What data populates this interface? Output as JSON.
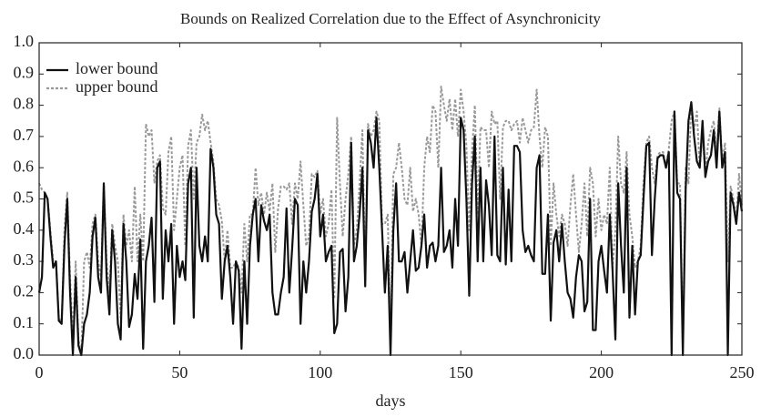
{
  "chart_data": {
    "type": "line",
    "title": "Bounds on Realized Correlation due to the Effect of Asynchronicity",
    "x_label": "days",
    "x": [
      0,
      1,
      2,
      3,
      4,
      5,
      6,
      7,
      8,
      9,
      10,
      11,
      12,
      13,
      14,
      15,
      16,
      17,
      18,
      19,
      20,
      21,
      22,
      23,
      24,
      25,
      26,
      27,
      28,
      29,
      30,
      31,
      32,
      33,
      34,
      35,
      36,
      37,
      38,
      39,
      40,
      41,
      42,
      43,
      44,
      45,
      46,
      47,
      48,
      49,
      50,
      51,
      52,
      53,
      54,
      55,
      56,
      57,
      58,
      59,
      60,
      61,
      62,
      63,
      64,
      65,
      66,
      67,
      68,
      69,
      70,
      71,
      72,
      73,
      74,
      75,
      76,
      77,
      78,
      79,
      80,
      81,
      82,
      83,
      84,
      85,
      86,
      87,
      88,
      89,
      90,
      91,
      92,
      93,
      94,
      95,
      96,
      97,
      98,
      99,
      100,
      101,
      102,
      103,
      104,
      105,
      106,
      107,
      108,
      109,
      110,
      111,
      112,
      113,
      114,
      115,
      116,
      117,
      118,
      119,
      120,
      121,
      122,
      123,
      124,
      125,
      126,
      127,
      128,
      129,
      130,
      131,
      132,
      133,
      134,
      135,
      136,
      137,
      138,
      139,
      140,
      141,
      142,
      143,
      144,
      145,
      146,
      147,
      148,
      149,
      150,
      151,
      152,
      153,
      154,
      155,
      156,
      157,
      158,
      159,
      160,
      161,
      162,
      163,
      164,
      165,
      166,
      167,
      168,
      169,
      170,
      171,
      172,
      173,
      174,
      175,
      176,
      177,
      178,
      179,
      180,
      181,
      182,
      183,
      184,
      185,
      186,
      187,
      188,
      189,
      190,
      191,
      192,
      193,
      194,
      195,
      196,
      197,
      198,
      199,
      200,
      201,
      202,
      203,
      204,
      205,
      206,
      207,
      208,
      209,
      210,
      211,
      212,
      213,
      214,
      215,
      216,
      217,
      218,
      219,
      220,
      221,
      222,
      223,
      224,
      225,
      226,
      227,
      228,
      229,
      230,
      231,
      232,
      233,
      234,
      235,
      236,
      237,
      238,
      239,
      240,
      241,
      242,
      243,
      244,
      245,
      246,
      247,
      248,
      249,
      250
    ],
    "series": [
      {
        "name": "lower bound",
        "color": "#111111",
        "dash": false,
        "values": [
          0.2,
          0.25,
          0.52,
          0.5,
          0.38,
          0.28,
          0.3,
          0.11,
          0.1,
          0.35,
          0.5,
          0.2,
          0.0,
          0.25,
          0.03,
          0.0,
          0.1,
          0.13,
          0.2,
          0.38,
          0.44,
          0.25,
          0.2,
          0.55,
          0.25,
          0.13,
          0.4,
          0.3,
          0.1,
          0.05,
          0.42,
          0.3,
          0.09,
          0.13,
          0.26,
          0.18,
          0.37,
          0.02,
          0.3,
          0.35,
          0.44,
          0.17,
          0.6,
          0.62,
          0.18,
          0.4,
          0.3,
          0.42,
          0.1,
          0.35,
          0.25,
          0.3,
          0.24,
          0.55,
          0.6,
          0.12,
          0.6,
          0.35,
          0.3,
          0.38,
          0.3,
          0.66,
          0.6,
          0.45,
          0.42,
          0.18,
          0.3,
          0.35,
          0.25,
          0.1,
          0.3,
          0.27,
          0.02,
          0.3,
          0.1,
          0.35,
          0.45,
          0.5,
          0.3,
          0.48,
          0.43,
          0.4,
          0.45,
          0.2,
          0.13,
          0.13,
          0.2,
          0.25,
          0.47,
          0.2,
          0.34,
          0.5,
          0.48,
          0.1,
          0.3,
          0.2,
          0.3,
          0.46,
          0.5,
          0.58,
          0.38,
          0.45,
          0.3,
          0.33,
          0.35,
          0.07,
          0.1,
          0.33,
          0.34,
          0.14,
          0.25,
          0.68,
          0.3,
          0.35,
          0.45,
          0.6,
          0.22,
          0.72,
          0.68,
          0.6,
          0.76,
          0.6,
          0.4,
          0.2,
          0.35,
          0.0,
          0.4,
          0.55,
          0.3,
          0.3,
          0.33,
          0.2,
          0.3,
          0.4,
          0.27,
          0.28,
          0.35,
          0.45,
          0.28,
          0.35,
          0.36,
          0.3,
          0.35,
          0.6,
          0.33,
          0.35,
          0.4,
          0.28,
          0.5,
          0.35,
          0.76,
          0.72,
          0.5,
          0.19,
          0.55,
          0.7,
          0.3,
          0.6,
          0.3,
          0.56,
          0.48,
          0.32,
          0.7,
          0.32,
          0.3,
          0.6,
          0.29,
          0.53,
          0.3,
          0.67,
          0.67,
          0.65,
          0.4,
          0.33,
          0.35,
          0.32,
          0.3,
          0.6,
          0.64,
          0.26,
          0.26,
          0.45,
          0.11,
          0.36,
          0.4,
          0.3,
          0.42,
          0.3,
          0.2,
          0.18,
          0.12,
          0.25,
          0.32,
          0.3,
          0.14,
          0.17,
          0.5,
          0.08,
          0.08,
          0.3,
          0.35,
          0.27,
          0.2,
          0.45,
          0.27,
          0.05,
          0.55,
          0.35,
          0.2,
          0.6,
          0.12,
          0.35,
          0.13,
          0.3,
          0.32,
          0.5,
          0.67,
          0.68,
          0.32,
          0.5,
          0.63,
          0.64,
          0.64,
          0.6,
          0.65,
          0.0,
          0.78,
          0.52,
          0.5,
          0.0,
          0.53,
          0.75,
          0.81,
          0.7,
          0.62,
          0.6,
          0.75,
          0.57,
          0.62,
          0.64,
          0.72,
          0.6,
          0.78,
          0.6,
          0.65,
          0.0,
          0.52,
          0.48,
          0.42,
          0.52,
          0.46
        ]
      },
      {
        "name": "upper bound",
        "color": "#999999",
        "dash": true,
        "values": [
          0.55,
          0.53,
          0.52,
          0.5,
          0.4,
          0.3,
          0.3,
          0.12,
          0.1,
          0.4,
          0.52,
          0.25,
          0.05,
          0.3,
          0.05,
          0.0,
          0.3,
          0.33,
          0.28,
          0.42,
          0.45,
          0.3,
          0.25,
          0.55,
          0.3,
          0.2,
          0.42,
          0.35,
          0.3,
          0.12,
          0.45,
          0.35,
          0.4,
          0.3,
          0.54,
          0.3,
          0.45,
          0.3,
          0.74,
          0.7,
          0.72,
          0.55,
          0.62,
          0.64,
          0.47,
          0.45,
          0.65,
          0.7,
          0.4,
          0.5,
          0.6,
          0.64,
          0.35,
          0.67,
          0.72,
          0.5,
          0.68,
          0.7,
          0.77,
          0.72,
          0.75,
          0.68,
          0.62,
          0.5,
          0.48,
          0.43,
          0.3,
          0.4,
          0.28,
          0.28,
          0.3,
          0.28,
          0.2,
          0.42,
          0.3,
          0.45,
          0.45,
          0.6,
          0.48,
          0.52,
          0.45,
          0.52,
          0.46,
          0.55,
          0.33,
          0.47,
          0.54,
          0.54,
          0.53,
          0.55,
          0.42,
          0.55,
          0.5,
          0.62,
          0.48,
          0.35,
          0.38,
          0.58,
          0.57,
          0.59,
          0.45,
          0.5,
          0.38,
          0.42,
          0.53,
          0.18,
          0.76,
          0.55,
          0.38,
          0.5,
          0.58,
          0.7,
          0.35,
          0.4,
          0.55,
          0.72,
          0.25,
          0.74,
          0.7,
          0.72,
          0.78,
          0.75,
          0.42,
          0.42,
          0.45,
          0.05,
          0.58,
          0.6,
          0.68,
          0.6,
          0.5,
          0.48,
          0.6,
          0.46,
          0.5,
          0.45,
          0.35,
          0.6,
          0.7,
          0.65,
          0.8,
          0.78,
          0.6,
          0.86,
          0.8,
          0.75,
          0.82,
          0.72,
          0.82,
          0.7,
          0.85,
          0.78,
          0.67,
          0.4,
          0.65,
          0.8,
          0.45,
          0.73,
          0.72,
          0.72,
          0.6,
          0.78,
          0.74,
          0.75,
          0.5,
          0.73,
          0.75,
          0.75,
          0.72,
          0.74,
          0.75,
          0.68,
          0.76,
          0.72,
          0.68,
          0.72,
          0.73,
          0.85,
          0.7,
          0.6,
          0.73,
          0.7,
          0.35,
          0.55,
          0.45,
          0.38,
          0.45,
          0.42,
          0.35,
          0.48,
          0.58,
          0.45,
          0.33,
          0.42,
          0.55,
          0.38,
          0.6,
          0.55,
          0.38,
          0.5,
          0.4,
          0.45,
          0.42,
          0.6,
          0.28,
          0.4,
          0.7,
          0.55,
          0.52,
          0.65,
          0.45,
          0.38,
          0.28,
          0.3,
          0.35,
          0.55,
          0.68,
          0.7,
          0.6,
          0.55,
          0.64,
          0.65,
          0.65,
          0.6,
          0.66,
          0.75,
          0.78,
          0.55,
          0.55,
          0.0,
          0.6,
          0.55,
          0.81,
          0.72,
          0.78,
          0.6,
          0.7,
          0.58,
          0.68,
          0.72,
          0.75,
          0.65,
          0.79,
          0.62,
          0.68,
          0.3,
          0.54,
          0.5,
          0.43,
          0.58,
          0.48
        ]
      }
    ],
    "xlim": [
      0,
      250
    ],
    "xticks": [
      0,
      50,
      100,
      150,
      200,
      250
    ],
    "ylim": [
      0,
      1
    ],
    "yticks": [
      {
        "value": 0,
        "label": "0.0"
      },
      {
        "value": 0.1,
        "label": "0.1"
      },
      {
        "value": 0.2,
        "label": "0.2"
      },
      {
        "value": 0.3,
        "label": "0.3"
      },
      {
        "value": 0.4,
        "label": "0.4"
      },
      {
        "value": 0.5,
        "label": "0.5"
      },
      {
        "value": 0.6,
        "label": "0.6"
      },
      {
        "value": 0.7,
        "label": "0.7"
      },
      {
        "value": 0.8,
        "label": "0.8"
      },
      {
        "value": 0.9,
        "label": "0.9"
      },
      {
        "value": 1,
        "label": "1.0"
      }
    ],
    "legend": "upper-left",
    "grid": false
  }
}
